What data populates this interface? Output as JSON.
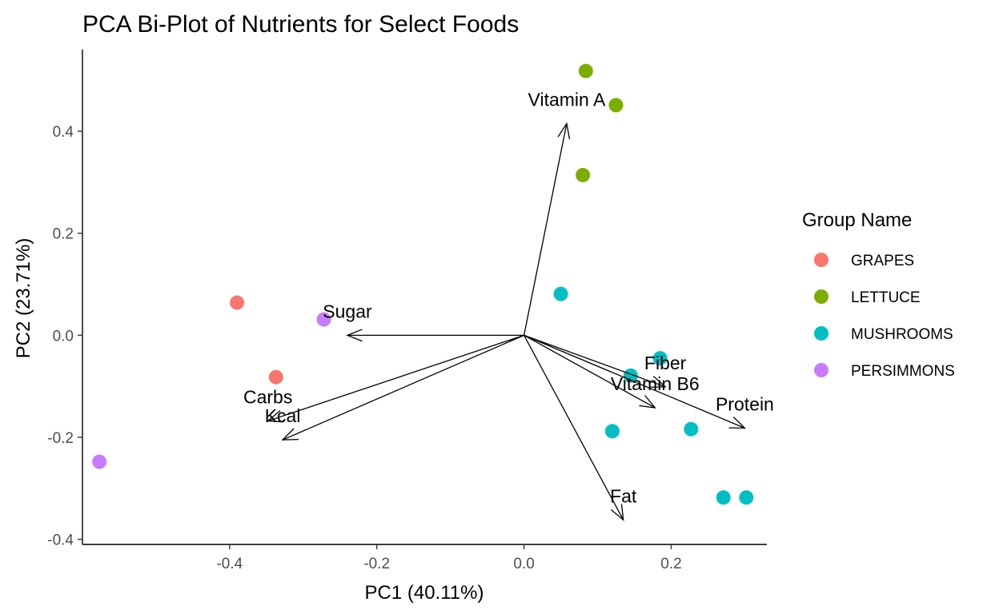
{
  "chart_data": {
    "type": "scatter",
    "title": "PCA Bi-Plot of Nutrients for Select Foods",
    "xlabel": "PC1 (40.11%)",
    "ylabel": "PC2 (23.71%)",
    "xlim": [
      -0.6,
      0.33
    ],
    "ylim": [
      -0.41,
      0.56
    ],
    "xticks": [
      -0.4,
      -0.2,
      0.0,
      0.2
    ],
    "xtick_labels": [
      "-0.4",
      "-0.2",
      "0.0",
      "0.2"
    ],
    "yticks": [
      -0.4,
      -0.2,
      0.0,
      0.2,
      0.4
    ],
    "ytick_labels": [
      "-0.4",
      "-0.2",
      "0.0",
      "0.2",
      "0.4"
    ],
    "grid": false,
    "legend": {
      "title": "Group Name",
      "placement": "right"
    },
    "series": [
      {
        "name": "GRAPES",
        "color": "#F8766D",
        "points": [
          {
            "x": -0.39,
            "y": 0.064
          },
          {
            "x": -0.337,
            "y": -0.082
          }
        ]
      },
      {
        "name": "LETTUCE",
        "color": "#7CAE00",
        "points": [
          {
            "x": 0.084,
            "y": 0.518
          },
          {
            "x": 0.125,
            "y": 0.451
          },
          {
            "x": 0.08,
            "y": 0.314
          }
        ]
      },
      {
        "name": "MUSHROOMS",
        "color": "#00BFC4",
        "points": [
          {
            "x": 0.05,
            "y": 0.081
          },
          {
            "x": 0.185,
            "y": -0.045
          },
          {
            "x": 0.145,
            "y": -0.079
          },
          {
            "x": 0.12,
            "y": -0.188
          },
          {
            "x": 0.227,
            "y": -0.184
          },
          {
            "x": 0.271,
            "y": -0.318
          },
          {
            "x": 0.302,
            "y": -0.318
          }
        ]
      },
      {
        "name": "PERSIMMONS",
        "color": "#C77CFF",
        "points": [
          {
            "x": -0.272,
            "y": 0.031
          },
          {
            "x": -0.577,
            "y": -0.248
          }
        ]
      }
    ],
    "loadings": [
      {
        "label": "Vitamin A",
        "x": 0.058,
        "y": 0.415
      },
      {
        "label": "Sugar",
        "x": -0.24,
        "y": 0.0
      },
      {
        "label": "Carbs",
        "x": -0.348,
        "y": -0.168
      },
      {
        "label": "Kcal",
        "x": -0.328,
        "y": -0.205
      },
      {
        "label": "Fiber",
        "x": 0.192,
        "y": -0.101
      },
      {
        "label": "Vitamin B6",
        "x": 0.178,
        "y": -0.142
      },
      {
        "label": "Protein",
        "x": 0.3,
        "y": -0.182
      },
      {
        "label": "Fat",
        "x": 0.135,
        "y": -0.362
      }
    ]
  }
}
